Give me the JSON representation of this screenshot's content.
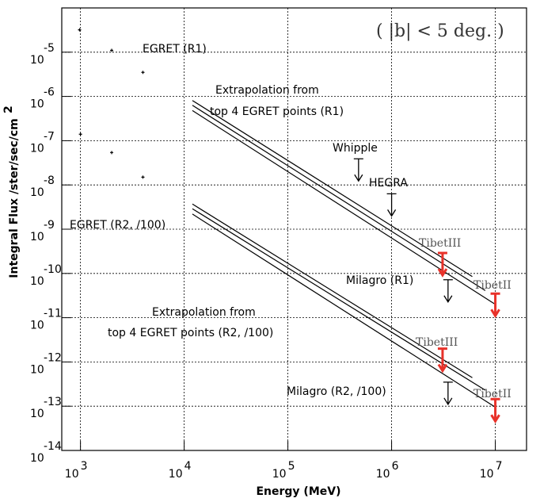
{
  "chart_data": {
    "type": "line",
    "x_label": "Energy (MeV)",
    "y_label": "Integral Flux  /ster/sec/cm",
    "y_label_sup": "2",
    "log_x": true,
    "log_y": true,
    "grid": true,
    "xlim": [
      660,
      20000000
    ],
    "ylim": [
      1e-14,
      0.0001
    ],
    "xticks": [
      {
        "value": 1000,
        "label": "10",
        "exponent": "3"
      },
      {
        "value": 10000,
        "label": "10",
        "exponent": "4"
      },
      {
        "value": 100000,
        "label": "10",
        "exponent": "5"
      },
      {
        "value": 1000000,
        "label": "10",
        "exponent": "6"
      },
      {
        "value": 10000000,
        "label": "10",
        "exponent": "7"
      }
    ],
    "yticks": [
      {
        "value": 1e-14,
        "label": "10",
        "exponent": "-14"
      },
      {
        "value": 1e-13,
        "label": "10",
        "exponent": "-13"
      },
      {
        "value": 1e-12,
        "label": "10",
        "exponent": "-12"
      },
      {
        "value": 1e-11,
        "label": "10",
        "exponent": "-11"
      },
      {
        "value": 1e-10,
        "label": "10",
        "exponent": "-10"
      },
      {
        "value": 1e-09,
        "label": "10",
        "exponent": "-9"
      },
      {
        "value": 1e-08,
        "label": "10",
        "exponent": "-8"
      },
      {
        "value": 1e-07,
        "label": "10",
        "exponent": "-7"
      },
      {
        "value": 1e-06,
        "label": "10",
        "exponent": "-6"
      },
      {
        "value": 1e-05,
        "label": "10",
        "exponent": "-5"
      }
    ],
    "series": [
      {
        "color": "#000000",
        "x": [
          12000,
          6000000
        ],
        "values": [
          8.1e-07,
          8.5e-11
        ]
      },
      {
        "color": "#000000",
        "x": [
          12000,
          8000000
        ],
        "values": [
          6.3e-07,
          4.1e-11
        ]
      },
      {
        "color": "#000000",
        "x": [
          12000,
          10000000
        ],
        "values": [
          4.8e-07,
          2e-11
        ]
      },
      {
        "color": "#000000",
        "x": [
          12000,
          6000000
        ],
        "values": [
          3.7e-09,
          4.4e-13
        ]
      },
      {
        "color": "#000000",
        "x": [
          12000,
          8000000
        ],
        "values": [
          2.9e-09,
          2.3e-13
        ]
      },
      {
        "color": "#000000",
        "x": [
          12000,
          10000000
        ],
        "values": [
          2.2e-09,
          9.5e-14
        ]
      }
    ],
    "points": [
      {
        "color": "#000000",
        "x": [
          980,
          2000,
          4000
        ],
        "values": [
          3.2e-05,
          1.1e-05,
          3.5e-06
        ]
      },
      {
        "color": "#000000",
        "x": [
          1000,
          2000,
          4000
        ],
        "values": [
          1.4e-07,
          5.4e-08,
          1.5e-08
        ]
      }
    ],
    "upper_limits": [
      {
        "x": 480000,
        "value": 3.9e-08,
        "color": "#000000"
      },
      {
        "x": 1000000,
        "value": 6.3e-09,
        "color": "#000000"
      },
      {
        "x": 3100000,
        "value": 2.9e-10,
        "color": "#e8322a"
      },
      {
        "x": 3500000,
        "value": 7.2e-11,
        "color": "#000000"
      },
      {
        "x": 10000000,
        "value": 3.5e-11,
        "color": "#e8322a"
      },
      {
        "x": 3100000,
        "value": 2e-12,
        "color": "#e8322a"
      },
      {
        "x": 3500000,
        "value": 3.5e-13,
        "color": "#000000"
      },
      {
        "x": 10000000,
        "value": 1.45e-13,
        "color": "#e8322a"
      }
    ],
    "annotations": [
      "EGRET (R1)",
      "Extrapolation from",
      "top 4 EGRET points (R1)",
      "Whipple",
      "HEGRA",
      "EGRET (R2, /100)",
      "TibetIII",
      "Milagro (R1)",
      "TibetII",
      "Extrapolation from",
      "top 4 EGRET points (R2, /100)",
      "TibetIII",
      "Milagro (R2, /100)",
      "TibetII"
    ],
    "region_note": "( |b| < 5 deg. )"
  }
}
